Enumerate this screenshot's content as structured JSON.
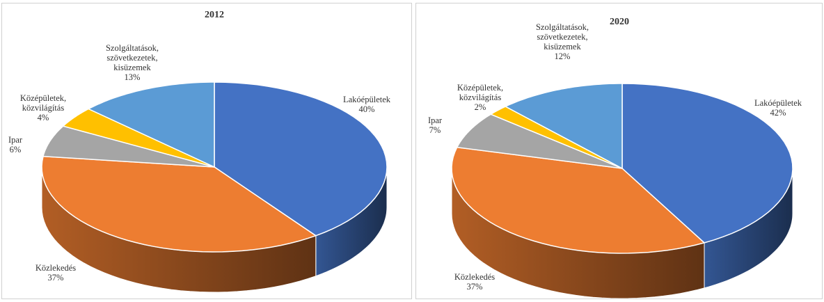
{
  "chart_data": [
    {
      "type": "pie3d",
      "title": "2012",
      "categories": [
        "Lakóépületek",
        "Közlekedés",
        "Ipar",
        "Középületek, közvilágítás",
        "Szolgáltatások, szövetkezetek, kisüzemek"
      ],
      "values": [
        40,
        37,
        6,
        4,
        13
      ],
      "value_labels": [
        "40%",
        "37%",
        "6%",
        "4%",
        "13%"
      ],
      "colors": [
        "#4472c4",
        "#ed7d31",
        "#a5a5a5",
        "#ffc000",
        "#5b9bd5"
      ]
    },
    {
      "type": "pie3d",
      "title": "2020",
      "categories": [
        "Lakóépületek",
        "Közlekedés",
        "Ipar",
        "Középületek, közvilágítás",
        "Szolgáltatások, szövetkezetek, kisüzemek"
      ],
      "values": [
        42,
        37,
        7,
        2,
        12
      ],
      "value_labels": [
        "42%",
        "37%",
        "7%",
        "2%",
        "12%"
      ],
      "colors": [
        "#4472c4",
        "#ed7d31",
        "#a5a5a5",
        "#ffc000",
        "#5b9bd5"
      ]
    }
  ]
}
